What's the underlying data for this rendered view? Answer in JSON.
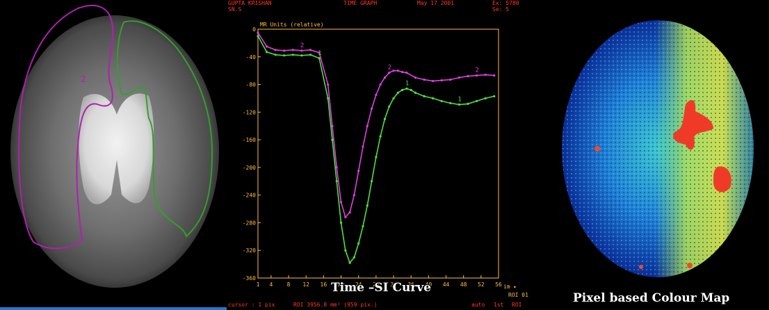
{
  "panels": {
    "mri": {
      "roi_labels": [
        "2"
      ]
    },
    "graph": {
      "header": {
        "patient": "GUPTA KRISHAN",
        "series_code": "SN.S",
        "mode": "TIME GRAPH",
        "date": "May 17 2001",
        "exam": "Ex: 5780",
        "series": "Se: 5"
      },
      "footer": {
        "cursor": "cursor : 1 pix",
        "roi": "ROI 3956.8 mm² (959 pix.)",
        "auto": "auto",
        "range": "1st",
        "tag": "ROI"
      },
      "roi_box": "ROI 01",
      "x_unit": "im ▸",
      "caption": "Time –SI Curve"
    },
    "colormap": {
      "caption": "Pixel based Colour Map"
    }
  },
  "chart_data": {
    "type": "line",
    "title": "",
    "xlabel": "",
    "ylabel": "MR Units (relative)",
    "xlim": [
      1,
      56
    ],
    "ylim": [
      -360,
      0
    ],
    "x_ticks": [
      1,
      4,
      8,
      12,
      16,
      20,
      24,
      28,
      32,
      36,
      40,
      44,
      48,
      52,
      56
    ],
    "y_ticks": [
      0,
      -40,
      -80,
      -120,
      -160,
      -200,
      -240,
      -280,
      -320,
      -360
    ],
    "grid": false,
    "series": [
      {
        "name": "2",
        "color": "#e040e0",
        "x": [
          1,
          3,
          5,
          7,
          9,
          11,
          13,
          15,
          17,
          18,
          19,
          20,
          21,
          22,
          23,
          24,
          25,
          26,
          27,
          28,
          29,
          30,
          31,
          32,
          33,
          34,
          35,
          37,
          39,
          41,
          43,
          45,
          47,
          49,
          51,
          53,
          55
        ],
        "values": [
          -5,
          -25,
          -30,
          -31,
          -30,
          -31,
          -30,
          -34,
          -80,
          -140,
          -200,
          -250,
          -272,
          -265,
          -240,
          -205,
          -170,
          -140,
          -115,
          -95,
          -80,
          -70,
          -63,
          -60,
          -60,
          -62,
          -63,
          -70,
          -73,
          -75,
          -74,
          -73,
          -70,
          -68,
          -67,
          -66,
          -67
        ]
      },
      {
        "name": "1",
        "color": "#50e040",
        "x": [
          1,
          3,
          5,
          7,
          9,
          11,
          13,
          15,
          17,
          18,
          19,
          20,
          21,
          22,
          23,
          24,
          25,
          26,
          27,
          28,
          29,
          30,
          31,
          32,
          33,
          34,
          35,
          36,
          37,
          39,
          41,
          43,
          45,
          47,
          49,
          51,
          53,
          55
        ],
        "values": [
          -10,
          -33,
          -37,
          -38,
          -37,
          -38,
          -37,
          -42,
          -100,
          -160,
          -220,
          -280,
          -320,
          -338,
          -330,
          -310,
          -285,
          -255,
          -220,
          -185,
          -155,
          -130,
          -112,
          -100,
          -92,
          -88,
          -86,
          -88,
          -92,
          -97,
          -100,
          -104,
          -107,
          -109,
          -108,
          -104,
          -100,
          -97
        ]
      }
    ]
  }
}
